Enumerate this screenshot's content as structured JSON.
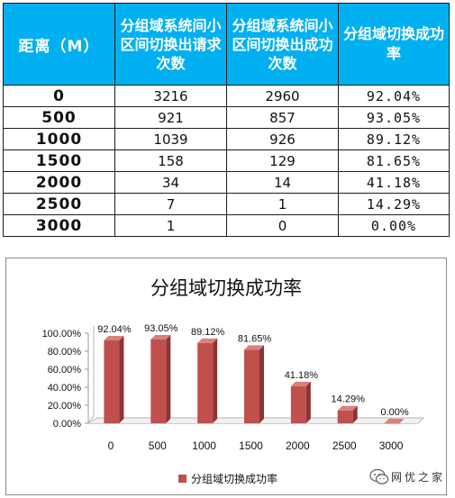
{
  "table": {
    "headers": [
      "距离（M）",
      "分组域系统间小区间切换出请求次数",
      "分组域系统间小区间切换出成功次数",
      "分组域切换成功率"
    ],
    "rows": [
      {
        "distance": "0",
        "requests": "3216",
        "successes": "2960",
        "rate": "92.04%"
      },
      {
        "distance": "500",
        "requests": "921",
        "successes": "857",
        "rate": "93.05%"
      },
      {
        "distance": "1000",
        "requests": "1039",
        "successes": "926",
        "rate": "89.12%"
      },
      {
        "distance": "1500",
        "requests": "158",
        "successes": "129",
        "rate": "81.65%"
      },
      {
        "distance": "2000",
        "requests": "34",
        "successes": "14",
        "rate": "41.18%"
      },
      {
        "distance": "2500",
        "requests": "7",
        "successes": "1",
        "rate": "14.29%"
      },
      {
        "distance": "3000",
        "requests": "1",
        "successes": "0",
        "rate": "0.00%"
      }
    ]
  },
  "chart_data": {
    "type": "bar",
    "title": "分组域切换成功率",
    "categories": [
      "0",
      "500",
      "1000",
      "1500",
      "2000",
      "2500",
      "3000"
    ],
    "series": [
      {
        "name": "分组域切换成功率",
        "values": [
          92.04,
          93.05,
          89.12,
          81.65,
          41.18,
          14.29,
          0.0
        ],
        "labels": [
          "92.04%",
          "93.05%",
          "89.12%",
          "81.65%",
          "41.18%",
          "14.29%",
          "0.00%"
        ],
        "color": "#c0504d"
      }
    ],
    "yticks": [
      "0.00%",
      "20.00%",
      "40.00%",
      "60.00%",
      "80.00%",
      "100.00%"
    ],
    "ylim": [
      0,
      100
    ],
    "grid": false,
    "style": "3d",
    "legend": "bottom"
  },
  "watermark": {
    "text": "网优之家"
  }
}
